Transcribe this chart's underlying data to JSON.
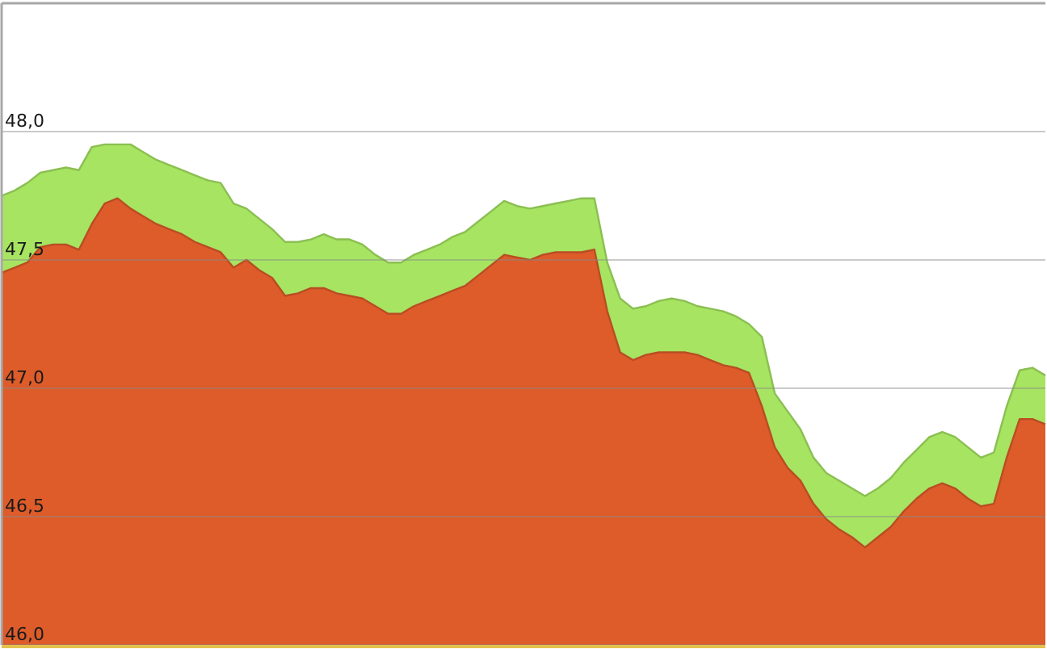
{
  "chart_data": {
    "type": "area",
    "categories": [
      null,
      null,
      null,
      null,
      null,
      null,
      null,
      null,
      null,
      null,
      null,
      null,
      null,
      null,
      null,
      null,
      null,
      null,
      null,
      null,
      null,
      null,
      null,
      null,
      null,
      null,
      null,
      null,
      null,
      null,
      null,
      null,
      null,
      null,
      null,
      null,
      null,
      null,
      null,
      null,
      null,
      null,
      null,
      null,
      null,
      null,
      null,
      null,
      null,
      null,
      null,
      null,
      null,
      null,
      null,
      null,
      null,
      null,
      null,
      null,
      null,
      null,
      null,
      null,
      null,
      null,
      null,
      null,
      null,
      null,
      null,
      null,
      null,
      null,
      null,
      null,
      null,
      null,
      null,
      null,
      null,
      null
    ],
    "series": [
      {
        "color": "#a6e462",
        "values": [
          47.75,
          47.77,
          47.8,
          47.84,
          47.85,
          47.86,
          47.85,
          47.94,
          47.95,
          47.95,
          47.95,
          47.92,
          47.89,
          47.87,
          47.85,
          47.83,
          47.81,
          47.8,
          47.72,
          47.7,
          47.66,
          47.62,
          47.57,
          47.57,
          47.58,
          47.6,
          47.58,
          47.58,
          47.56,
          47.52,
          47.49,
          47.49,
          47.52,
          47.54,
          47.56,
          47.59,
          47.61,
          47.65,
          47.69,
          47.73,
          47.71,
          47.7,
          47.71,
          47.72,
          47.73,
          47.74,
          47.74,
          47.49,
          47.35,
          47.31,
          47.32,
          47.34,
          47.35,
          47.34,
          47.32,
          47.31,
          47.3,
          47.28,
          47.25,
          47.2,
          46.98,
          46.91,
          46.84,
          46.73,
          46.67,
          46.64,
          46.61,
          46.58,
          46.61,
          46.65,
          46.71,
          46.76,
          46.81,
          46.83,
          46.81,
          46.77,
          46.73,
          46.75,
          46.93,
          47.07,
          47.08,
          47.05
        ]
      },
      {
        "color": "#dd5c2a",
        "values": [
          47.45,
          47.47,
          47.49,
          47.55,
          47.56,
          47.56,
          47.54,
          47.64,
          47.72,
          47.74,
          47.7,
          47.67,
          47.64,
          47.62,
          47.6,
          47.57,
          47.55,
          47.53,
          47.47,
          47.5,
          47.46,
          47.43,
          47.36,
          47.37,
          47.39,
          47.39,
          47.37,
          47.36,
          47.35,
          47.32,
          47.29,
          47.29,
          47.32,
          47.34,
          47.36,
          47.38,
          47.4,
          47.44,
          47.48,
          47.52,
          47.51,
          47.5,
          47.52,
          47.53,
          47.53,
          47.53,
          47.54,
          47.3,
          47.14,
          47.11,
          47.13,
          47.14,
          47.14,
          47.14,
          47.13,
          47.11,
          47.09,
          47.08,
          47.06,
          46.93,
          46.77,
          46.69,
          46.64,
          46.55,
          46.49,
          46.45,
          46.42,
          46.38,
          46.42,
          46.46,
          46.52,
          46.57,
          46.61,
          46.63,
          46.61,
          46.57,
          46.54,
          46.55,
          46.73,
          46.88,
          46.88,
          46.86
        ]
      }
    ],
    "ylim": [
      46,
      48.5
    ],
    "yticks": [
      {
        "value": 46,
        "label": "46,0"
      },
      {
        "value": 46.5,
        "label": "46,5"
      },
      {
        "value": 47,
        "label": "47,0"
      },
      {
        "value": 47.5,
        "label": "47,5"
      },
      {
        "value": 48,
        "label": "48,0"
      }
    ],
    "grid": "y"
  }
}
